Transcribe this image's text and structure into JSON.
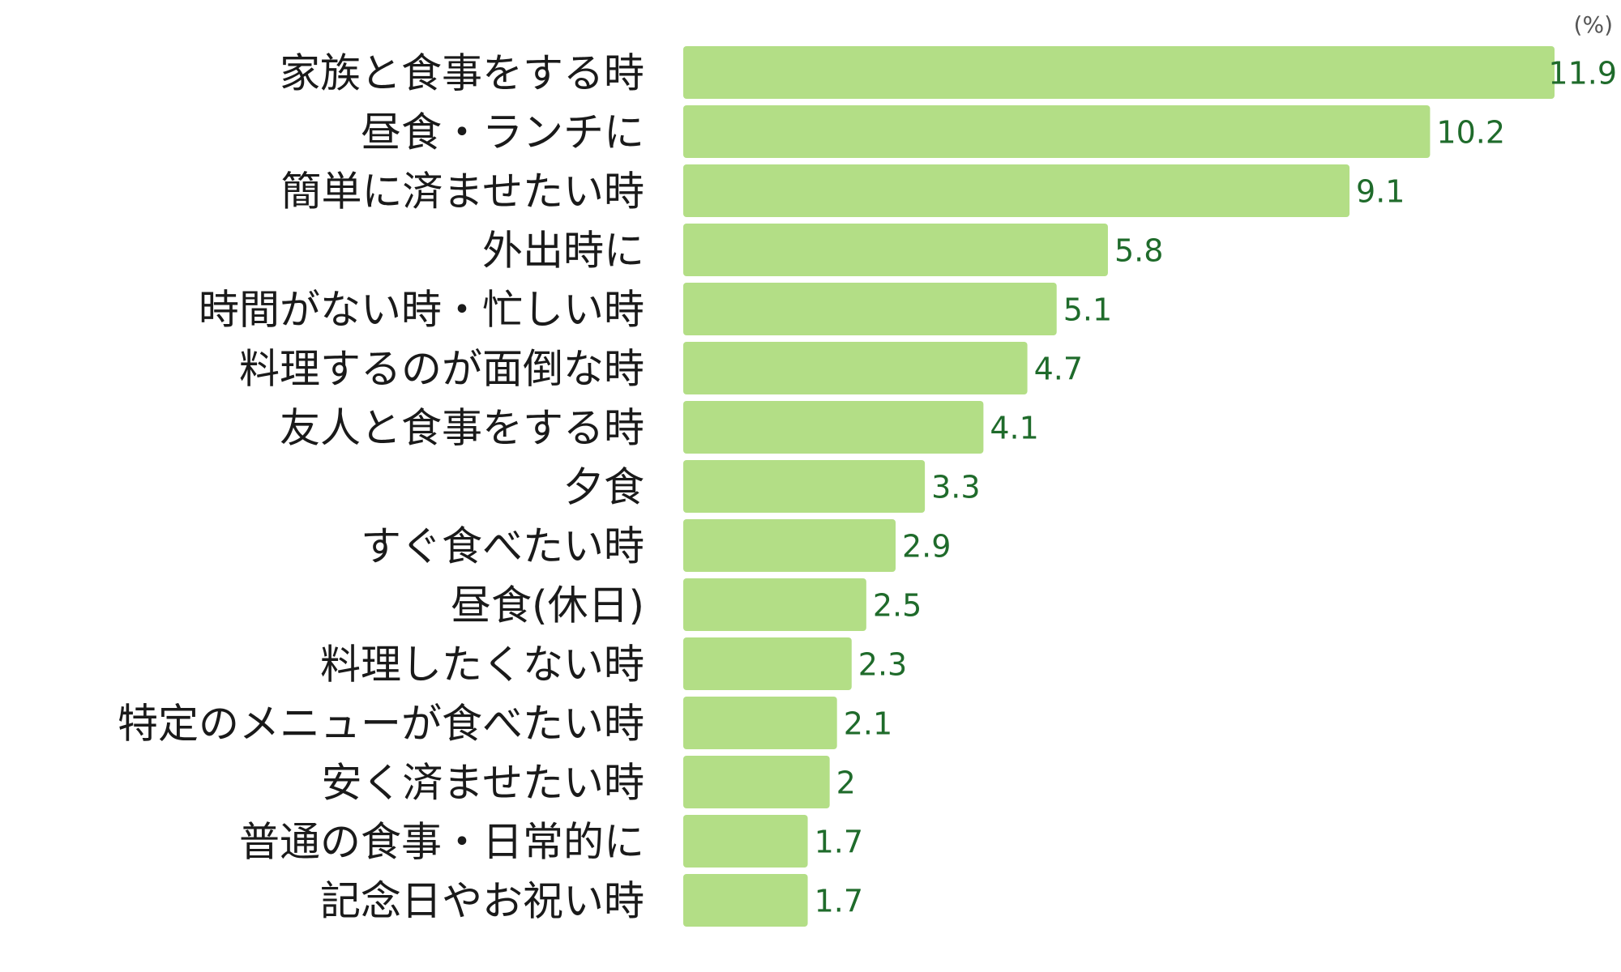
{
  "chart_data": {
    "type": "bar",
    "orientation": "horizontal",
    "unit": "(%)",
    "categories": [
      "家族と食事をする時",
      "昼食・ランチに",
      "簡単に済ませたい時",
      "外出時に",
      "時間がない時・忙しい時",
      "料理するのが面倒な時",
      "友人と食事をする時",
      "夕食",
      "すぐ食べたい時",
      "昼食(休日)",
      "料理したくない時",
      "特定のメニューが食べたい時",
      "安く済ませたい時",
      "普通の食事・日常的に",
      "記念日やお祝い時"
    ],
    "values": [
      11.9,
      10.2,
      9.1,
      5.8,
      5.1,
      4.7,
      4.1,
      3.3,
      2.9,
      2.5,
      2.3,
      2.1,
      2,
      1.7,
      1.7
    ],
    "value_labels": [
      "11.9",
      "10.2",
      "9.1",
      "5.8",
      "5.1",
      "4.7",
      "4.1",
      "3.3",
      "2.9",
      "2.5",
      "2.3",
      "2.1",
      "2",
      "1.7",
      "1.7"
    ],
    "xlim": [
      0,
      11.9
    ],
    "grid": false,
    "legend": "none",
    "bar_color": "#b3de86",
    "value_color": "#1f6b2b"
  }
}
